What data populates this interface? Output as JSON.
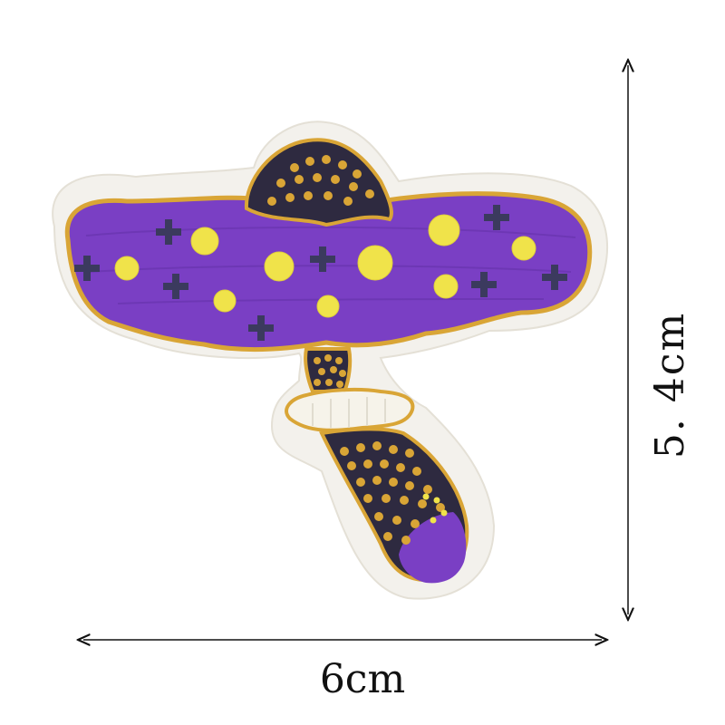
{
  "dimensions": {
    "width_label": "6cm",
    "height_label": "5. 4cm"
  },
  "patch": {
    "subject": "mushroom-embroidered-patch",
    "colors": {
      "cap_purple": "#7a3fc4",
      "cap_purple_dark": "#6532ab",
      "gold_border": "#d9a536",
      "dot_yellow": "#f0e34a",
      "cross_navy": "#3b3a5e",
      "dark_navy": "#2e2a40",
      "felt_backing": "#f3f1ec",
      "stem_cream": "#f6f3ea"
    }
  },
  "arrow_color": "#111111"
}
